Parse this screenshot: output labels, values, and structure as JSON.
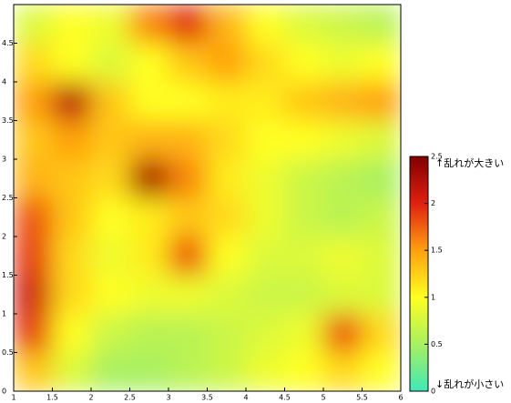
{
  "chart_data": {
    "type": "heatmap",
    "x": [
      1.25,
      1.75,
      2.25,
      2.75,
      3.25,
      3.75,
      4.25,
      4.75,
      5.25,
      5.75
    ],
    "y": [
      4.75,
      4.25,
      3.75,
      3.25,
      2.75,
      2.25,
      1.75,
      1.25,
      0.75,
      0.25
    ],
    "z": [
      [
        0.8,
        1.0,
        0.9,
        1.6,
        2.0,
        1.4,
        1.0,
        0.8,
        0.7,
        0.6
      ],
      [
        1.2,
        1.0,
        0.8,
        1.0,
        1.3,
        1.5,
        1.2,
        1.0,
        0.9,
        1.0
      ],
      [
        1.5,
        2.2,
        1.3,
        1.0,
        1.0,
        1.1,
        1.1,
        1.3,
        1.4,
        1.5
      ],
      [
        1.3,
        1.5,
        1.3,
        1.4,
        1.4,
        1.2,
        1.0,
        1.0,
        0.9,
        0.8
      ],
      [
        1.4,
        1.3,
        1.2,
        2.3,
        1.6,
        1.1,
        0.9,
        0.7,
        0.6,
        0.5
      ],
      [
        1.8,
        1.3,
        1.0,
        1.1,
        1.3,
        1.2,
        0.9,
        0.7,
        0.6,
        0.7
      ],
      [
        1.9,
        1.2,
        0.9,
        1.1,
        1.8,
        1.0,
        0.8,
        0.8,
        0.9,
        0.8
      ],
      [
        2.1,
        1.2,
        1.0,
        0.9,
        0.9,
        0.8,
        0.7,
        0.7,
        0.8,
        0.8
      ],
      [
        1.9,
        1.0,
        0.7,
        0.6,
        0.6,
        0.7,
        0.8,
        0.9,
        1.8,
        1.2
      ],
      [
        1.3,
        0.8,
        0.5,
        0.5,
        0.6,
        0.7,
        0.9,
        1.0,
        1.2,
        1.0
      ]
    ],
    "xlim": [
      1,
      6
    ],
    "xticks": [
      1,
      1.5,
      2,
      2.5,
      3,
      3.5,
      4,
      4.5,
      5,
      5.5,
      6
    ],
    "ylim": [
      0,
      5
    ],
    "yticks": [
      0,
      0.5,
      1,
      1.5,
      2,
      2.5,
      3,
      3.5,
      4,
      4.5
    ],
    "clim": [
      0,
      2.5
    ],
    "cticks": [
      0,
      0.5,
      1,
      1.5,
      2,
      2.5
    ],
    "colorscale": [
      "#40e8b8",
      "#a8f060",
      "#ffff20",
      "#ffa010",
      "#e02010",
      "#800000"
    ],
    "annotations": [
      "↑乱れが大きい",
      "↓乱れが小さい"
    ]
  }
}
